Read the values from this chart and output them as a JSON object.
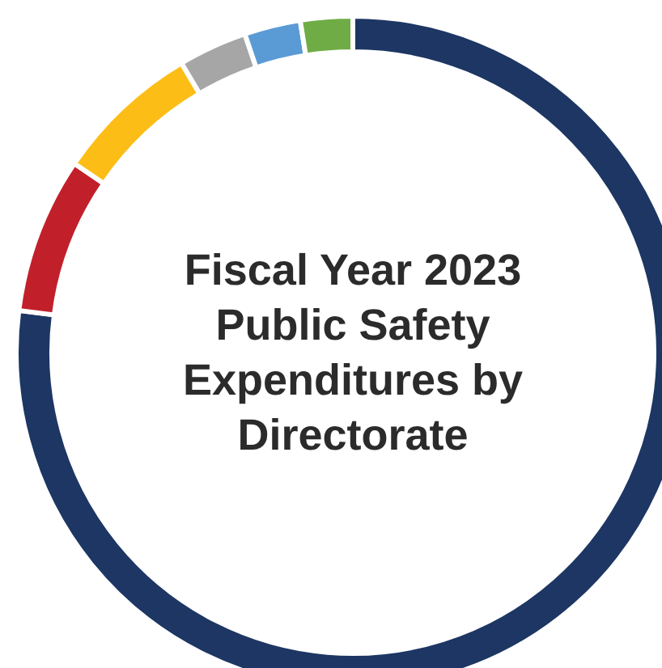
{
  "chart_data": {
    "type": "donut",
    "title": "Fiscal Year 2023 Public Safety Expenditures by Directorate",
    "categories": [
      null,
      null,
      null,
      null,
      null,
      null
    ],
    "values": [
      77,
      7.5,
      7,
      3.3,
      2.7,
      2.5
    ],
    "colors": [
      "#1d3663",
      "#c1202b",
      "#fcbd16",
      "#a6a6a6",
      "#5a9bd5",
      "#6fac46"
    ]
  }
}
